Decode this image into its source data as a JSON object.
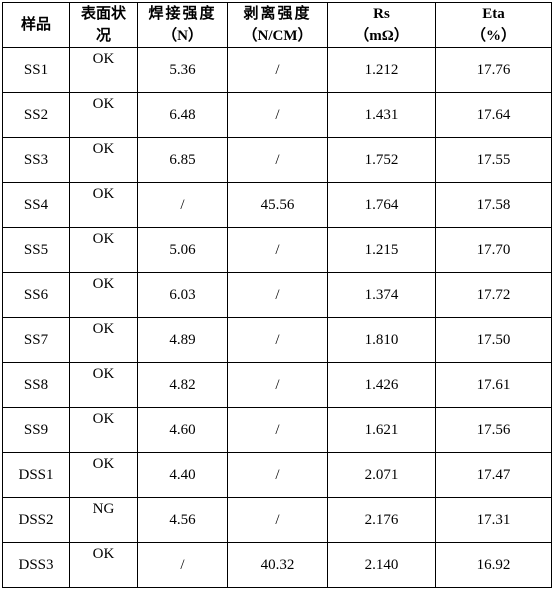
{
  "headers": {
    "sample": "样品",
    "surface_l1": "表面状",
    "surface_l2": "况",
    "weld_l1": "焊接强度",
    "weld_l2": "（N）",
    "peel_l1": "剥离强度",
    "peel_l2": "（N/CM）",
    "rs_l1": "Rs",
    "rs_l2": "（mΩ）",
    "eta_l1": "Eta",
    "eta_l2": "（%）"
  },
  "rows": [
    {
      "sample": "SS1",
      "surface": "OK",
      "weld": "5.36",
      "peel": "/",
      "rs": "1.212",
      "eta": "17.76"
    },
    {
      "sample": "SS2",
      "surface": "OK",
      "weld": "6.48",
      "peel": "/",
      "rs": "1.431",
      "eta": "17.64"
    },
    {
      "sample": "SS3",
      "surface": "OK",
      "weld": "6.85",
      "peel": "/",
      "rs": "1.752",
      "eta": "17.55"
    },
    {
      "sample": "SS4",
      "surface": "OK",
      "weld": "/",
      "peel": "45.56",
      "rs": "1.764",
      "eta": "17.58"
    },
    {
      "sample": "SS5",
      "surface": "OK",
      "weld": "5.06",
      "peel": "/",
      "rs": "1.215",
      "eta": "17.70"
    },
    {
      "sample": "SS6",
      "surface": "OK",
      "weld": "6.03",
      "peel": "/",
      "rs": "1.374",
      "eta": "17.72"
    },
    {
      "sample": "SS7",
      "surface": "OK",
      "weld": "4.89",
      "peel": "/",
      "rs": "1.810",
      "eta": "17.50"
    },
    {
      "sample": "SS8",
      "surface": "OK",
      "weld": "4.82",
      "peel": "/",
      "rs": "1.426",
      "eta": "17.61"
    },
    {
      "sample": "SS9",
      "surface": "OK",
      "weld": "4.60",
      "peel": "/",
      "rs": "1.621",
      "eta": "17.56"
    },
    {
      "sample": "DSS1",
      "surface": "OK",
      "weld": "4.40",
      "peel": "/",
      "rs": "2.071",
      "eta": "17.47"
    },
    {
      "sample": "DSS2",
      "surface": "NG",
      "weld": "4.56",
      "peel": "/",
      "rs": "2.176",
      "eta": "17.31"
    },
    {
      "sample": "DSS3",
      "surface": "OK",
      "weld": "/",
      "peel": "40.32",
      "rs": "2.140",
      "eta": "16.92"
    }
  ]
}
